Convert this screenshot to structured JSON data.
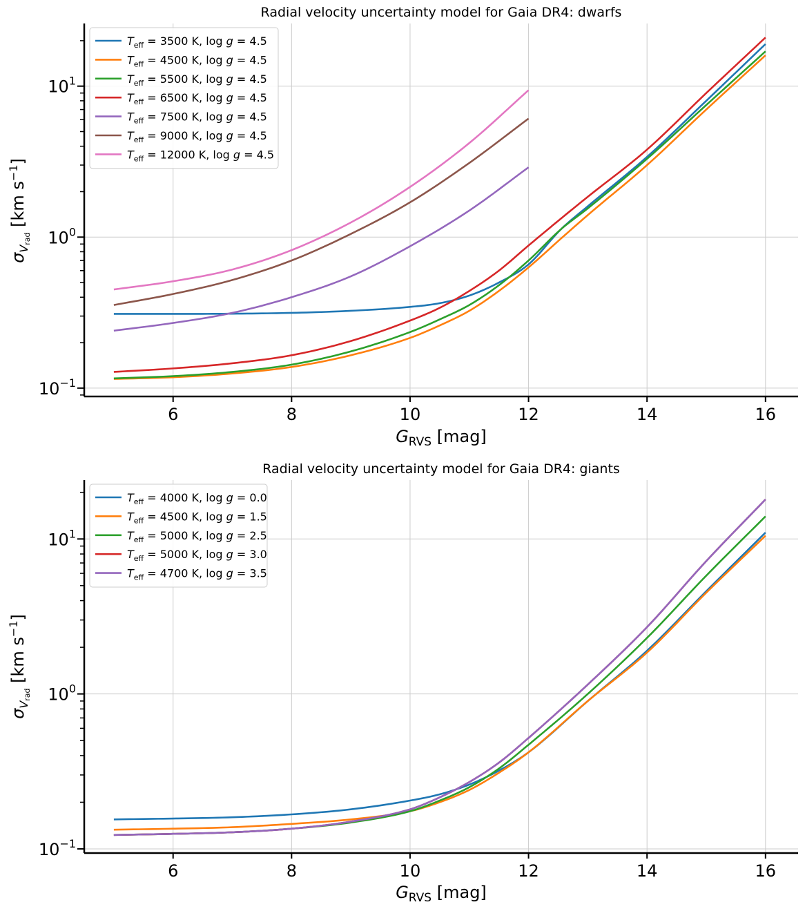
{
  "chart_data": [
    {
      "type": "line",
      "title": "Radial velocity uncertainty model for Gaia DR4: dwarfs",
      "xlabel_main": "G",
      "xlabel_sub": "RVS",
      "xlabel_unit": " [mag]",
      "ylabel_main": "σ",
      "ylabel_sub1": "V",
      "ylabel_sub2": "rad",
      "ylabel_unit": " [km s",
      "ylabel_sup": "−1",
      "ylabel_close": "]",
      "x_scale": "linear",
      "y_scale": "log",
      "xlim": [
        4.5,
        16.55
      ],
      "ylim": [
        0.088,
        26
      ],
      "xticks": [
        6,
        8,
        10,
        12,
        14,
        16
      ],
      "yticks": [
        {
          "value": 0.1,
          "base": "10",
          "exp": "−1"
        },
        {
          "value": 1,
          "base": "10",
          "exp": "0"
        },
        {
          "value": 10,
          "base": "10",
          "exp": "1"
        }
      ],
      "grid": true,
      "legend_position": "upper-left",
      "series": [
        {
          "teff": "3500",
          "logg": "4.5",
          "color": "#1f77b4",
          "x": [
            5,
            6,
            7,
            8,
            9,
            10,
            10.5,
            11,
            11.5,
            12,
            12.55,
            13,
            14,
            15,
            16
          ],
          "y": [
            0.31,
            0.31,
            0.311,
            0.315,
            0.325,
            0.345,
            0.365,
            0.41,
            0.5,
            0.66,
            1.13,
            1.6,
            3.4,
            8.0,
            19.0
          ]
        },
        {
          "teff": "4500",
          "logg": "4.5",
          "color": "#ff7f0e",
          "x": [
            5,
            6,
            7,
            8,
            9,
            10,
            10.5,
            11,
            11.5,
            12,
            12.55,
            13,
            14,
            15,
            16
          ],
          "y": [
            0.115,
            0.118,
            0.125,
            0.138,
            0.165,
            0.215,
            0.26,
            0.325,
            0.44,
            0.63,
            0.98,
            1.4,
            3.0,
            7.0,
            16.0
          ]
        },
        {
          "teff": "5500",
          "logg": "4.5",
          "color": "#2ca02c",
          "x": [
            5,
            6,
            7,
            8,
            9,
            10,
            10.5,
            11,
            11.5,
            12,
            12.55,
            13,
            14,
            15,
            16
          ],
          "y": [
            0.116,
            0.12,
            0.128,
            0.143,
            0.175,
            0.235,
            0.285,
            0.355,
            0.48,
            0.7,
            1.13,
            1.55,
            3.3,
            7.5,
            17.0
          ]
        },
        {
          "teff": "6500",
          "logg": "4.5",
          "color": "#d62728",
          "x": [
            5,
            6,
            7,
            8,
            9,
            10,
            10.5,
            11,
            11.5,
            12,
            12.55,
            13,
            14,
            15,
            16
          ],
          "y": [
            0.128,
            0.135,
            0.146,
            0.165,
            0.205,
            0.28,
            0.34,
            0.44,
            0.6,
            0.88,
            1.33,
            1.85,
            3.8,
            9.0,
            21.0
          ]
        },
        {
          "teff": "7500",
          "logg": "4.5",
          "color": "#9467bd",
          "x": [
            5,
            6,
            7,
            8,
            9,
            10,
            11,
            12
          ],
          "y": [
            0.24,
            0.27,
            0.315,
            0.4,
            0.55,
            0.87,
            1.5,
            2.9
          ]
        },
        {
          "teff": "9000",
          "logg": "4.5",
          "color": "#8c564b",
          "x": [
            5,
            6,
            7,
            8,
            9,
            10,
            11,
            12
          ],
          "y": [
            0.355,
            0.42,
            0.52,
            0.7,
            1.05,
            1.7,
            3.1,
            6.1
          ]
        },
        {
          "teff": "12000",
          "logg": "4.5",
          "color": "#e377c2",
          "x": [
            5,
            6,
            7,
            8,
            9,
            10,
            11,
            12
          ],
          "y": [
            0.45,
            0.51,
            0.61,
            0.82,
            1.25,
            2.15,
            4.2,
            9.4
          ]
        }
      ]
    },
    {
      "type": "line",
      "title": "Radial velocity uncertainty model for Gaia DR4: giants",
      "xlabel_main": "G",
      "xlabel_sub": "RVS",
      "xlabel_unit": " [mag]",
      "ylabel_main": "σ",
      "ylabel_sub1": "V",
      "ylabel_sub2": "rad",
      "ylabel_unit": " [km s",
      "ylabel_sup": "−1",
      "ylabel_close": "]",
      "x_scale": "linear",
      "y_scale": "log",
      "xlim": [
        4.5,
        16.55
      ],
      "ylim": [
        0.094,
        24
      ],
      "xticks": [
        6,
        8,
        10,
        12,
        14,
        16
      ],
      "yticks": [
        {
          "value": 0.1,
          "base": "10",
          "exp": "−1"
        },
        {
          "value": 1,
          "base": "10",
          "exp": "0"
        },
        {
          "value": 10,
          "base": "10",
          "exp": "1"
        }
      ],
      "grid": true,
      "legend_position": "upper-left",
      "series": [
        {
          "teff": "4000",
          "logg": "0.0",
          "color": "#1f77b4",
          "x": [
            5,
            6,
            7,
            8,
            9,
            10,
            10.5,
            11,
            11.5,
            12,
            13,
            14,
            15,
            16
          ],
          "y": [
            0.155,
            0.157,
            0.16,
            0.167,
            0.18,
            0.205,
            0.225,
            0.26,
            0.32,
            0.42,
            0.9,
            1.9,
            4.6,
            11.0
          ]
        },
        {
          "teff": "4500",
          "logg": "1.5",
          "color": "#ff7f0e",
          "x": [
            5,
            6,
            7,
            8,
            9,
            10,
            10.5,
            11,
            11.5,
            12,
            13,
            14,
            15,
            16
          ],
          "y": [
            0.133,
            0.135,
            0.138,
            0.145,
            0.155,
            0.175,
            0.2,
            0.24,
            0.31,
            0.42,
            0.9,
            1.85,
            4.5,
            10.5
          ]
        },
        {
          "teff": "5000",
          "logg": "2.5",
          "color": "#2ca02c",
          "x": [
            5,
            6,
            7,
            8,
            9,
            10,
            10.5,
            11,
            11.5,
            12,
            13,
            14,
            15,
            16
          ],
          "y": [
            0.123,
            0.125,
            0.128,
            0.135,
            0.148,
            0.175,
            0.205,
            0.25,
            0.33,
            0.47,
            1.0,
            2.3,
            5.8,
            14.0
          ]
        },
        {
          "teff": "5000",
          "logg": "3.0",
          "color": "#d62728",
          "x": [
            5,
            6,
            7,
            8,
            9,
            10,
            10.5,
            11,
            11.5,
            12,
            13,
            14,
            15,
            16
          ],
          "y": [
            0.123,
            0.125,
            0.128,
            0.135,
            0.15,
            0.18,
            0.215,
            0.27,
            0.36,
            0.52,
            1.15,
            2.7,
            7.2,
            18.0
          ]
        },
        {
          "teff": "4700",
          "logg": "3.5",
          "color": "#9467bd",
          "x": [
            5,
            6,
            7,
            8,
            9,
            10,
            10.5,
            11,
            11.5,
            12,
            13,
            14,
            15,
            16
          ],
          "y": [
            0.123,
            0.125,
            0.128,
            0.135,
            0.15,
            0.18,
            0.215,
            0.27,
            0.36,
            0.52,
            1.15,
            2.7,
            7.2,
            18.0
          ]
        }
      ]
    }
  ]
}
